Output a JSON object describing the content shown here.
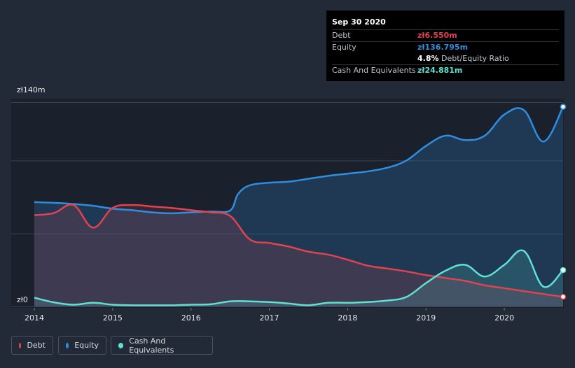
{
  "tooltip": {
    "date": "Sep 30 2020",
    "debt_label": "Debt",
    "debt_value": "zł6.550m",
    "equity_label": "Equity",
    "equity_value": "zł136.795m",
    "ratio_value": "4.8%",
    "ratio_label": "Debt/Equity Ratio",
    "cash_label": "Cash And Equivalents",
    "cash_value": "zł24.881m"
  },
  "legend": {
    "debt": "Debt",
    "equity": "Equity",
    "cash": "Cash And Equivalents"
  },
  "colors": {
    "debt": "#e0434f",
    "equity": "#2f8ee0",
    "cash": "#5fe0d2",
    "background": "#232a37",
    "plot": "#1b212c"
  },
  "chart_data": {
    "type": "area",
    "title": "",
    "xlabel": "",
    "ylabel": "",
    "y_unit_prefix": "zł",
    "y_tick_labels": [
      "zł0",
      "zł140m"
    ],
    "ylim": [
      0,
      140
    ],
    "xlim": [
      2014.0,
      2020.75
    ],
    "x_ticks": [
      2014,
      2015,
      2016,
      2017,
      2018,
      2019,
      2020
    ],
    "x_tick_labels": [
      "2014",
      "2015",
      "2016",
      "2017",
      "2018",
      "2019",
      "2020"
    ],
    "series": [
      {
        "name": "Equity",
        "x": [
          2014.0,
          2014.25,
          2014.5,
          2014.75,
          2015.0,
          2015.25,
          2015.5,
          2015.75,
          2016.0,
          2016.25,
          2016.5,
          2016.6,
          2016.75,
          2017.0,
          2017.25,
          2017.5,
          2017.75,
          2018.0,
          2018.25,
          2018.5,
          2018.75,
          2019.0,
          2019.25,
          2019.5,
          2019.75,
          2020.0,
          2020.25,
          2020.5,
          2020.75
        ],
        "values": [
          71.5,
          71.0,
          70.2,
          69.0,
          67.0,
          66.0,
          64.5,
          63.8,
          64.5,
          65.0,
          65.8,
          77.0,
          83.0,
          84.8,
          85.5,
          87.5,
          89.5,
          91.0,
          92.5,
          95.0,
          100.0,
          110.0,
          117.0,
          114.0,
          117.0,
          131.5,
          134.5,
          113.0,
          136.8
        ]
      },
      {
        "name": "Debt",
        "x": [
          2014.0,
          2014.25,
          2014.5,
          2014.75,
          2015.0,
          2015.25,
          2015.5,
          2015.75,
          2016.0,
          2016.25,
          2016.5,
          2016.75,
          2017.0,
          2017.25,
          2017.5,
          2017.75,
          2018.0,
          2018.25,
          2018.5,
          2018.75,
          2019.0,
          2019.25,
          2019.5,
          2019.75,
          2020.0,
          2020.25,
          2020.5,
          2020.75
        ],
        "values": [
          62.5,
          64.0,
          69.5,
          54.0,
          67.5,
          69.5,
          68.5,
          67.5,
          66.0,
          64.5,
          62.0,
          46.0,
          43.5,
          41.0,
          37.5,
          35.5,
          32.0,
          28.0,
          26.0,
          24.0,
          21.5,
          19.5,
          17.5,
          14.5,
          12.5,
          10.5,
          8.5,
          6.6
        ]
      },
      {
        "name": "Cash And Equivalents",
        "x": [
          2014.0,
          2014.25,
          2014.5,
          2014.75,
          2015.0,
          2015.25,
          2015.5,
          2015.75,
          2016.0,
          2016.25,
          2016.5,
          2016.75,
          2017.0,
          2017.25,
          2017.5,
          2017.75,
          2018.0,
          2018.25,
          2018.5,
          2018.75,
          2019.0,
          2019.25,
          2019.5,
          2019.75,
          2020.0,
          2020.25,
          2020.5,
          2020.75
        ],
        "values": [
          6.0,
          2.8,
          1.2,
          2.5,
          1.2,
          0.8,
          0.8,
          0.8,
          1.2,
          1.5,
          3.5,
          3.5,
          3.0,
          2.0,
          0.8,
          2.5,
          2.5,
          3.0,
          4.0,
          6.5,
          16.0,
          24.5,
          28.5,
          20.5,
          28.5,
          38.0,
          13.5,
          24.9
        ]
      }
    ]
  }
}
